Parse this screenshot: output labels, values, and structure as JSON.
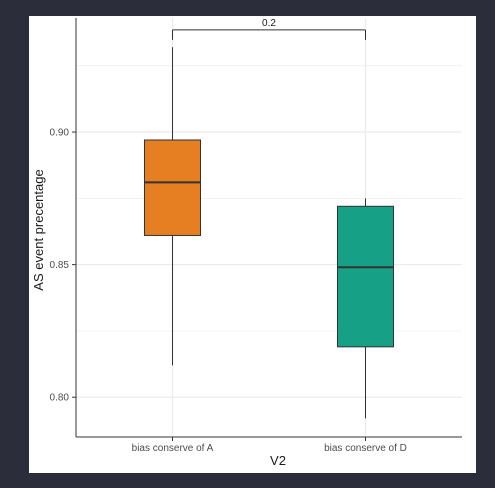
{
  "colors": {
    "page_background": "#2b2d3a",
    "panel_background": "#ffffff",
    "grid": "#ebebeb",
    "axis": "#333333",
    "text": "#333333"
  },
  "chart_data": {
    "type": "boxplot",
    "title": "",
    "xlabel": "V2",
    "ylabel": "AS event precentage",
    "ylim": [
      0.785,
      0.943
    ],
    "y_ticks": [
      0.8,
      0.85,
      0.9
    ],
    "y_tick_labels": [
      "0.80",
      "0.85",
      "0.90"
    ],
    "grid": true,
    "legend": "none",
    "categories": [
      "bias conserve of A",
      "bias conserve of D"
    ],
    "boxes": [
      {
        "category": "bias conserve of A",
        "whisker_low": 0.812,
        "q1": 0.861,
        "median": 0.881,
        "q3": 0.897,
        "whisker_high": 0.932,
        "color": "#e67e22"
      },
      {
        "category": "bias conserve of D",
        "whisker_low": 0.792,
        "q1": 0.819,
        "median": 0.849,
        "q3": 0.872,
        "whisker_high": 0.875,
        "color": "#16a085"
      }
    ],
    "annotations": [
      {
        "type": "significance-bracket",
        "from": "bias conserve of A",
        "to": "bias conserve of D",
        "label": "0.2",
        "y": 0.9385
      }
    ]
  }
}
